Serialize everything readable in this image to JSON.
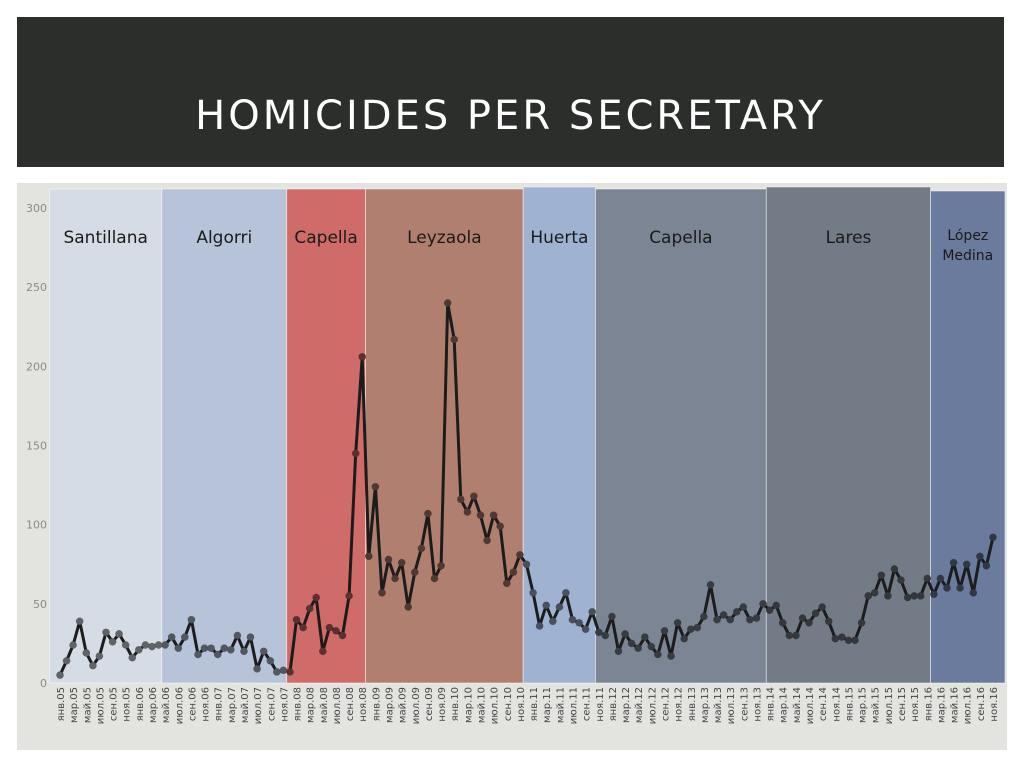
{
  "slide": {
    "title": "HOMICIDES PER SECRETARY"
  },
  "colors": {
    "title_bar": "#2b2e2a",
    "plot_background": "#e3e3df",
    "line": "#1c1c1c"
  },
  "chart_data": {
    "type": "line",
    "title": "",
    "xlabel": "",
    "ylabel": "",
    "ylim": [
      0,
      300
    ],
    "yticks": [
      0,
      50,
      100,
      150,
      200,
      250,
      300
    ],
    "grid": false,
    "x_labels": [
      "янв.05",
      "мар.05",
      "май.05",
      "июл.05",
      "сен.05",
      "ноя.05",
      "янв.06",
      "мар.06",
      "май.06",
      "июл.06",
      "сен.06",
      "ноя.06",
      "янв.07",
      "мар.07",
      "май.07",
      "июл.07",
      "сен.07",
      "ноя.07",
      "янв.08",
      "мар.08",
      "май.08",
      "июл.08",
      "сен.08",
      "ноя.08",
      "янв.09",
      "мар.09",
      "май.09",
      "июл.09",
      "сен.09",
      "ноя.09",
      "янв.10",
      "мар.10",
      "май.10",
      "июл.10",
      "сен.10",
      "ноя.10",
      "янв.11",
      "мар.11",
      "май.11",
      "июл.11",
      "сен.11",
      "ноя.11",
      "янв.12",
      "мар.12",
      "май.12",
      "июл.12",
      "сен.12",
      "ноя.12",
      "янв.13",
      "мар.13",
      "май.13",
      "июл.13",
      "сен.13",
      "ноя.13",
      "янв.14",
      "мар.14",
      "май.14",
      "июл.14",
      "сен.14",
      "ноя.14",
      "янв.15",
      "мар.15",
      "май.15",
      "июл.15",
      "сен.15",
      "ноя.15",
      "янв.16",
      "мар.16",
      "май.16",
      "июл.16",
      "сен.16",
      "ноя.16"
    ],
    "series": [
      {
        "values": [
          5,
          14,
          24,
          39,
          19,
          11,
          17,
          32,
          26,
          31,
          24,
          16,
          21,
          24,
          23,
          24,
          24,
          29,
          22,
          29,
          40,
          18,
          22,
          22,
          18,
          22,
          21,
          30,
          20,
          29,
          9,
          20,
          14,
          7,
          8,
          7,
          40,
          35,
          47,
          54,
          20,
          35,
          33,
          30,
          55,
          145,
          206,
          80,
          124,
          57,
          78,
          66,
          76,
          48,
          70,
          85,
          107,
          66,
          74,
          240,
          217,
          116,
          108,
          118,
          106,
          90,
          106,
          99,
          63,
          70,
          81,
          75,
          57,
          36,
          49,
          39,
          48,
          57,
          40,
          38,
          34,
          45,
          32,
          30,
          42,
          20,
          31,
          25,
          22,
          29,
          23,
          18,
          33,
          17,
          38,
          28,
          34,
          35,
          42,
          62,
          40,
          43,
          40,
          45,
          48,
          40,
          41,
          50,
          46,
          49,
          38,
          30,
          30,
          41,
          38,
          44,
          48,
          39,
          28,
          29,
          27,
          27,
          38,
          55,
          57,
          68,
          55,
          72,
          65,
          54,
          55,
          55,
          66,
          56,
          66,
          60,
          76,
          60,
          75,
          57,
          80,
          74,
          92
        ]
      }
    ],
    "regions": [
      {
        "label": "Santillana",
        "start_index": 0,
        "end_index": 16,
        "color": "#d6dce5"
      },
      {
        "label": "Algorri",
        "start_index": 16,
        "end_index": 35,
        "color": "#b6c3d8"
      },
      {
        "label": "Capella",
        "start_index": 35,
        "end_index": 47,
        "color": "#cf6b69"
      },
      {
        "label": "Leyzaola",
        "start_index": 47,
        "end_index": 71,
        "color": "#b07f70"
      },
      {
        "label": "Huerta",
        "start_index": 71,
        "end_index": 82,
        "color": "#9fb2d1"
      },
      {
        "label": "Capella",
        "start_index": 82,
        "end_index": 108,
        "color": "#7b8594"
      },
      {
        "label": "Lares",
        "start_index": 108,
        "end_index": 133,
        "color": "#737b86"
      },
      {
        "label": "López Medina",
        "start_index": 133,
        "end_index": 144,
        "color": "#6a7b9e"
      }
    ]
  }
}
